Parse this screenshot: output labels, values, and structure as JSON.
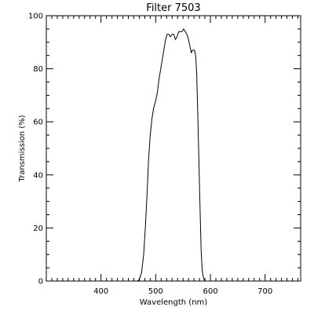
{
  "chart_data": {
    "type": "line",
    "title": "Filter 7503",
    "xlabel": "Wavelength (nm)",
    "ylabel": "Transmission (%)",
    "xlim": [
      300,
      765
    ],
    "ylim": [
      0,
      100
    ],
    "grid": false,
    "x_major_ticks": [
      400,
      500,
      600,
      700
    ],
    "y_major_ticks": [
      0,
      20,
      40,
      60,
      80,
      100
    ],
    "x_minor_step": 10,
    "y_minor_step": 5,
    "series": [
      {
        "x": [
          462,
          466,
          470,
          474,
          478,
          481,
          484,
          487,
          490,
          493,
          496,
          500,
          503,
          506,
          510,
          514,
          518,
          521,
          524,
          527,
          530,
          533,
          536,
          539,
          542,
          545,
          548,
          551,
          554,
          557,
          560,
          563,
          565,
          567,
          569,
          571,
          573,
          575,
          577,
          579,
          581,
          583,
          585,
          587,
          589,
          591,
          593,
          595,
          597
        ],
        "y": [
          0,
          0,
          0.5,
          3,
          10,
          20,
          32,
          46,
          55,
          61,
          65,
          68,
          71,
          76,
          81,
          86,
          91,
          93,
          93,
          92,
          93,
          93,
          91,
          92,
          94,
          94,
          94,
          95,
          94,
          93,
          91,
          88,
          86,
          87,
          87,
          87,
          85,
          78,
          62,
          45,
          28,
          12,
          4,
          1.5,
          0.3,
          0,
          0,
          0,
          0
        ]
      }
    ],
    "line_color": "#000000"
  }
}
